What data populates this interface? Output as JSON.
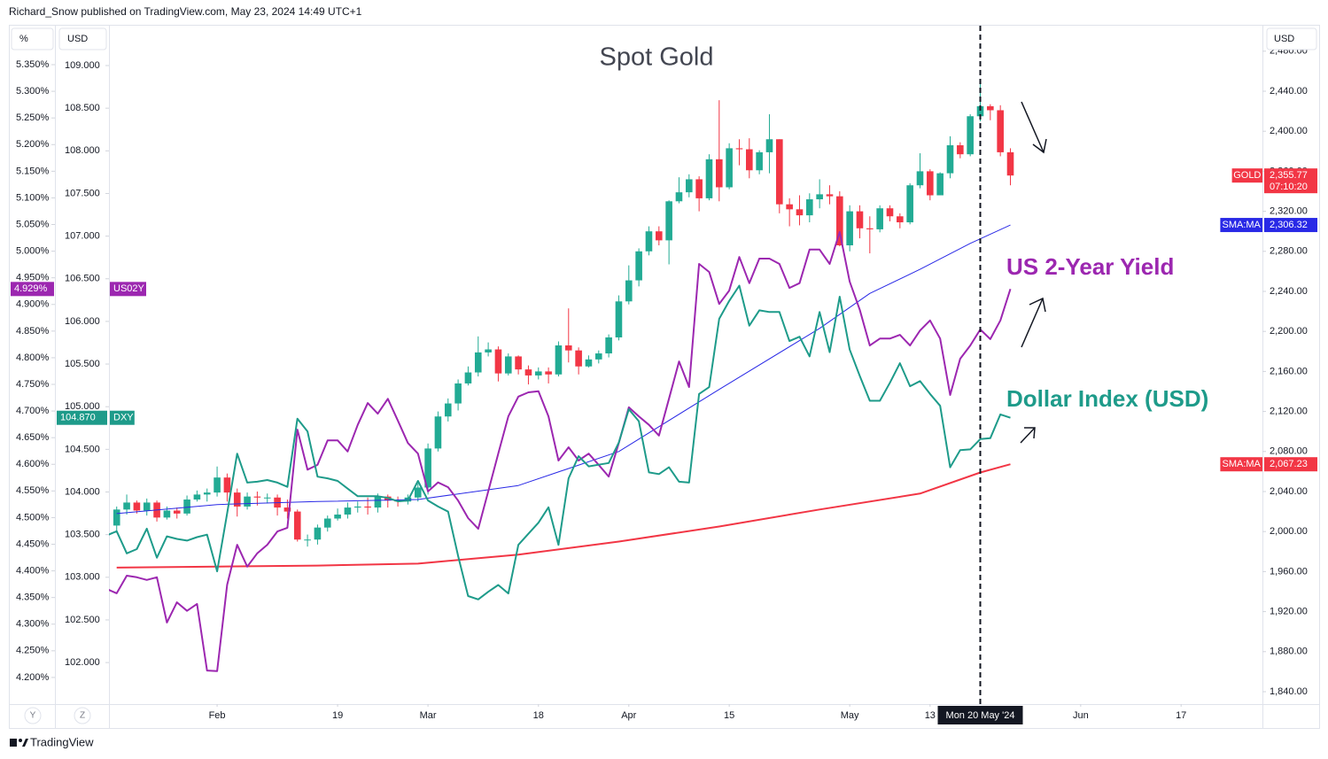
{
  "chart_data": {
    "type": "candlestick",
    "header": "Richard_Snow published on TradingView.com, May 23, 2024 14:49 UTC+1",
    "title": "Spot Gold",
    "annotations": [
      {
        "text": "US 2-Year Yield",
        "color": "#9c27b0"
      },
      {
        "text": "Dollar Index (USD)",
        "color": "#1e9b8a"
      }
    ],
    "xlim": [
      -0.77,
      114.1
    ],
    "xticks": [
      {
        "value": 10,
        "label": "Feb"
      },
      {
        "value": 22,
        "label": "19"
      },
      {
        "value": 31,
        "label": "Mar"
      },
      {
        "value": 42,
        "label": "18"
      },
      {
        "value": 51,
        "label": "Apr"
      },
      {
        "value": 61,
        "label": "15"
      },
      {
        "value": 73,
        "label": "May"
      },
      {
        "value": 81,
        "label": "13"
      },
      {
        "value": 86,
        "label": "Mon 20 May '24"
      },
      {
        "value": 96,
        "label": "Jun"
      },
      {
        "value": 106,
        "label": "17"
      }
    ],
    "crosshair_x": 86,
    "y_unit": "USD",
    "ylim": [
      1827.6,
      2504.6
    ],
    "yticks": [
      {
        "value": 1840,
        "label": "1,840.00"
      },
      {
        "value": 1880,
        "label": "1,880.00"
      },
      {
        "value": 1920,
        "label": "1,920.00"
      },
      {
        "value": 1960,
        "label": "1,960.00"
      },
      {
        "value": 2000,
        "label": "2,000.00"
      },
      {
        "value": 2040,
        "label": "2,040.00"
      },
      {
        "value": 2080,
        "label": "2,080.00"
      },
      {
        "value": 2120,
        "label": "2,120.00"
      },
      {
        "value": 2160,
        "label": "2,160.00"
      },
      {
        "value": 2200,
        "label": "2,200.00"
      },
      {
        "value": 2240,
        "label": "2,240.00"
      },
      {
        "value": 2280,
        "label": "2,280.00"
      },
      {
        "value": 2320,
        "label": "2,320.00"
      },
      {
        "value": 2360,
        "label": "2,360.00"
      },
      {
        "value": 2400,
        "label": "2,400.00"
      },
      {
        "value": 2440,
        "label": "2,440.00"
      },
      {
        "value": 2480,
        "label": "2,480.00"
      }
    ],
    "y2_unit": "USD",
    "y2lim": [
      101.513,
      109.457
    ],
    "y2ticks": [
      {
        "value": 102,
        "label": "102.000"
      },
      {
        "value": 102.5,
        "label": "102.500"
      },
      {
        "value": 103,
        "label": "103.000"
      },
      {
        "value": 103.5,
        "label": "103.500"
      },
      {
        "value": 104,
        "label": "104.000"
      },
      {
        "value": 104.5,
        "label": "104.500"
      },
      {
        "value": 105,
        "label": "105.000"
      },
      {
        "value": 105.5,
        "label": "105.500"
      },
      {
        "value": 106,
        "label": "106.000"
      },
      {
        "value": 106.5,
        "label": "106.500"
      },
      {
        "value": 107,
        "label": "107.000"
      },
      {
        "value": 107.5,
        "label": "107.500"
      },
      {
        "value": 108,
        "label": "108.000"
      },
      {
        "value": 108.5,
        "label": "108.500"
      },
      {
        "value": 109,
        "label": "109.000"
      }
    ],
    "y3_unit": "%",
    "y3lim": [
      4.15,
      5.4215
    ],
    "y3ticks": [
      {
        "value": 4.2,
        "label": "4.200%"
      },
      {
        "value": 4.25,
        "label": "4.250%"
      },
      {
        "value": 4.3,
        "label": "4.300%"
      },
      {
        "value": 4.35,
        "label": "4.350%"
      },
      {
        "value": 4.4,
        "label": "4.400%"
      },
      {
        "value": 4.45,
        "label": "4.450%"
      },
      {
        "value": 4.5,
        "label": "4.500%"
      },
      {
        "value": 4.55,
        "label": "4.550%"
      },
      {
        "value": 4.6,
        "label": "4.600%"
      },
      {
        "value": 4.65,
        "label": "4.650%"
      },
      {
        "value": 4.7,
        "label": "4.700%"
      },
      {
        "value": 4.75,
        "label": "4.750%"
      },
      {
        "value": 4.8,
        "label": "4.800%"
      },
      {
        "value": 4.85,
        "label": "4.850%"
      },
      {
        "value": 4.9,
        "label": "4.900%"
      },
      {
        "value": 4.95,
        "label": "4.950%"
      },
      {
        "value": 5,
        "label": "5.000%"
      },
      {
        "value": 5.05,
        "label": "5.050%"
      },
      {
        "value": 5.1,
        "label": "5.100%"
      },
      {
        "value": 5.15,
        "label": "5.150%"
      },
      {
        "value": 5.2,
        "label": "5.200%"
      },
      {
        "value": 5.25,
        "label": "5.250%"
      },
      {
        "value": 5.3,
        "label": "5.300%"
      },
      {
        "value": 5.35,
        "label": "5.350%"
      }
    ],
    "series": [
      {
        "name": "GOLD",
        "type": "candlestick",
        "axis": "y",
        "color": "#f23645",
        "up_color": "#22ab94",
        "down_color": "#f23645",
        "last_label": "2,355.77",
        "countdown": "07:10:20",
        "x": [
          0,
          1,
          2,
          3,
          4,
          5,
          6,
          7,
          8,
          9,
          10,
          11,
          12,
          13,
          14,
          15,
          16,
          17,
          18,
          19,
          20,
          21,
          22,
          23,
          24,
          25,
          26,
          27,
          28,
          29,
          30,
          31,
          32,
          33,
          34,
          35,
          36,
          37,
          38,
          39,
          40,
          41,
          42,
          43,
          44,
          45,
          46,
          47,
          48,
          49,
          50,
          51,
          52,
          53,
          54,
          55,
          56,
          57,
          58,
          59,
          60,
          61,
          62,
          63,
          64,
          65,
          66,
          67,
          68,
          69,
          70,
          71,
          72,
          73,
          74,
          75,
          76,
          77,
          78,
          79,
          80,
          81,
          82,
          83,
          84,
          85,
          86,
          87,
          88,
          89
        ],
        "open": [
          2006,
          2022,
          2029,
          2021,
          2029,
          2014,
          2021,
          2018,
          2032,
          2037,
          2039,
          2054,
          2039,
          2025,
          2035,
          2034,
          2034,
          2024,
          2020,
          1992,
          1992,
          2004,
          2013,
          2017,
          2024,
          2025,
          2024,
          2035,
          2031,
          2030,
          2034,
          2044,
          2083,
          2115,
          2128,
          2148,
          2159,
          2179,
          2182,
          2158,
          2175,
          2162,
          2156,
          2160,
          2157,
          2186,
          2181,
          2165,
          2172,
          2178,
          2194,
          2230,
          2251,
          2280,
          2300,
          2291,
          2330,
          2339,
          2352,
          2333,
          2372,
          2344,
          2383,
          2382,
          2361,
          2379,
          2392,
          2327,
          2322,
          2316,
          2332,
          2337,
          2335,
          2286,
          2320,
          2303,
          2302,
          2323,
          2315,
          2309,
          2346,
          2360,
          2336,
          2358,
          2386,
          2377,
          2415,
          2425,
          2421,
          2379
        ],
        "high": [
          2025,
          2037,
          2031,
          2033,
          2031,
          2025,
          2024,
          2036,
          2041,
          2043,
          2065,
          2058,
          2043,
          2039,
          2040,
          2038,
          2037,
          2032,
          2022,
          1997,
          2007,
          2016,
          2023,
          2029,
          2030,
          2034,
          2038,
          2037,
          2035,
          2037,
          2048,
          2088,
          2120,
          2133,
          2152,
          2165,
          2195,
          2189,
          2185,
          2178,
          2176,
          2166,
          2164,
          2164,
          2190,
          2223,
          2184,
          2176,
          2181,
          2197,
          2236,
          2266,
          2283,
          2305,
          2305,
          2331,
          2354,
          2357,
          2355,
          2377,
          2431,
          2388,
          2392,
          2393,
          2381,
          2417,
          2392,
          2333,
          2336,
          2338,
          2352,
          2346,
          2340,
          2326,
          2326,
          2315,
          2326,
          2326,
          2318,
          2348,
          2378,
          2362,
          2359,
          2395,
          2389,
          2417,
          2450,
          2427,
          2426,
          2383
        ],
        "low": [
          2001,
          2017,
          2018,
          2016,
          2010,
          2012,
          2013,
          2016,
          2030,
          2030,
          2035,
          2030,
          2015,
          2022,
          2026,
          2028,
          2016,
          2013,
          1990,
          1985,
          1987,
          2000,
          2011,
          2013,
          2019,
          2017,
          2019,
          2024,
          2025,
          2027,
          2030,
          2037,
          2080,
          2110,
          2121,
          2146,
          2155,
          2175,
          2150,
          2156,
          2157,
          2147,
          2152,
          2148,
          2155,
          2169,
          2157,
          2164,
          2168,
          2174,
          2191,
          2227,
          2245,
          2276,
          2286,
          2267,
          2328,
          2334,
          2320,
          2331,
          2330,
          2342,
          2366,
          2353,
          2357,
          2358,
          2318,
          2305,
          2306,
          2309,
          2323,
          2327,
          2285,
          2280,
          2293,
          2278,
          2299,
          2310,
          2303,
          2307,
          2343,
          2331,
          2336,
          2353,
          2373,
          2375,
          2410,
          2411,
          2375,
          2346
        ],
        "close": [
          2022,
          2029,
          2021,
          2029,
          2014,
          2021,
          2018,
          2032,
          2037,
          2039,
          2054,
          2039,
          2025,
          2035,
          2034,
          2034,
          2024,
          2020,
          1992,
          1992,
          2004,
          2013,
          2017,
          2024,
          2025,
          2024,
          2035,
          2031,
          2030,
          2034,
          2044,
          2083,
          2115,
          2128,
          2148,
          2159,
          2179,
          2182,
          2158,
          2175,
          2162,
          2156,
          2160,
          2157,
          2186,
          2181,
          2165,
          2172,
          2178,
          2194,
          2230,
          2251,
          2280,
          2300,
          2291,
          2330,
          2339,
          2352,
          2333,
          2372,
          2344,
          2383,
          2382,
          2361,
          2379,
          2392,
          2327,
          2322,
          2316,
          2332,
          2337,
          2335,
          2286,
          2320,
          2303,
          2302,
          2323,
          2315,
          2309,
          2346,
          2360,
          2336,
          2358,
          2386,
          2377,
          2415,
          2425,
          2421,
          2379,
          2355.77
        ]
      },
      {
        "name": "SMA:MA",
        "type": "line",
        "axis": "y",
        "color": "#2929e6",
        "width": 1,
        "last_label": "2,306.32",
        "x": [
          0,
          10,
          20,
          30,
          40,
          50,
          60,
          70,
          75,
          80,
          85,
          89
        ],
        "values": [
          2018,
          2027,
          2030,
          2032,
          2046,
          2080,
          2142,
          2203,
          2238,
          2262,
          2288,
          2306.32
        ]
      },
      {
        "name": "SMA:MA",
        "type": "line",
        "axis": "y",
        "color": "#f23645",
        "width": 2,
        "last_label": "2,067.23",
        "x": [
          0,
          10,
          20,
          30,
          40,
          50,
          60,
          70,
          80,
          86,
          89
        ],
        "values": [
          1964,
          1965,
          1966,
          1968,
          1977,
          1990,
          2005,
          2022,
          2038,
          2059,
          2067.23
        ]
      },
      {
        "name": "US02Y",
        "type": "line",
        "axis": "y3",
        "color": "#9c27b0",
        "width": 2,
        "last_label": "4.929%",
        "x": [
          -1,
          0,
          1,
          2,
          3,
          4,
          5,
          6,
          7,
          8,
          9,
          10,
          11,
          12,
          13,
          14,
          15,
          16,
          17,
          18,
          19,
          20,
          21,
          22,
          23,
          24,
          25,
          26,
          27,
          28,
          29,
          30,
          31,
          32,
          33,
          34,
          35,
          36,
          37,
          38,
          39,
          40,
          41,
          42,
          43,
          44,
          45,
          46,
          47,
          48,
          49,
          50,
          51,
          52,
          53,
          54,
          55,
          56,
          57,
          58,
          59,
          60,
          61,
          62,
          63,
          64,
          65,
          66,
          67,
          68,
          69,
          70,
          71,
          72,
          73,
          74,
          75,
          76,
          77,
          78,
          79,
          80,
          81,
          82,
          83,
          84,
          85,
          86,
          87,
          88,
          89
        ],
        "values": [
          4.366,
          4.358,
          4.391,
          4.388,
          4.383,
          4.388,
          4.303,
          4.341,
          4.325,
          4.338,
          4.213,
          4.212,
          4.374,
          4.449,
          4.408,
          4.433,
          4.449,
          4.474,
          4.481,
          4.665,
          4.59,
          4.599,
          4.645,
          4.645,
          4.624,
          4.674,
          4.715,
          4.695,
          4.723,
          4.682,
          4.64,
          4.62,
          4.549,
          4.566,
          4.557,
          4.532,
          4.499,
          4.479,
          4.549,
          4.62,
          4.69,
          4.727,
          4.735,
          4.737,
          4.69,
          4.607,
          4.632,
          4.607,
          4.62,
          4.599,
          4.577,
          4.64,
          4.707,
          4.69,
          4.674,
          4.654,
          4.723,
          4.793,
          4.745,
          4.976,
          4.961,
          4.901,
          4.926,
          4.989,
          4.94,
          4.986,
          4.986,
          4.976,
          4.931,
          4.94,
          5.003,
          5.003,
          4.976,
          5.036,
          4.943,
          4.89,
          4.823,
          4.836,
          4.836,
          4.843,
          4.823,
          4.851,
          4.87,
          4.836,
          4.73,
          4.798,
          4.823,
          4.853,
          4.835,
          4.87,
          4.929
        ]
      },
      {
        "name": "DXY",
        "type": "line",
        "axis": "y2",
        "color": "#1e9b8a",
        "width": 2,
        "last_label": "104.870",
        "x": [
          -1,
          0,
          1,
          2,
          3,
          4,
          5,
          6,
          7,
          8,
          9,
          10,
          11,
          12,
          13,
          14,
          15,
          16,
          17,
          18,
          19,
          20,
          21,
          22,
          23,
          24,
          25,
          26,
          27,
          28,
          29,
          30,
          31,
          32,
          33,
          34,
          35,
          36,
          37,
          38,
          39,
          40,
          41,
          42,
          43,
          44,
          45,
          46,
          47,
          48,
          49,
          50,
          51,
          52,
          53,
          54,
          55,
          56,
          57,
          58,
          59,
          60,
          61,
          62,
          63,
          64,
          65,
          66,
          67,
          68,
          69,
          70,
          71,
          72,
          73,
          74,
          75,
          76,
          77,
          78,
          79,
          80,
          81,
          82,
          83,
          84,
          85,
          86,
          87,
          88,
          89
        ],
        "values": [
          103.49,
          103.54,
          103.28,
          103.33,
          103.57,
          103.23,
          103.48,
          103.45,
          103.43,
          103.47,
          103.5,
          103.07,
          103.75,
          104.45,
          104.11,
          104.12,
          104.14,
          104.11,
          104.06,
          104.86,
          104.71,
          104.18,
          104.16,
          104.13,
          104.04,
          103.95,
          103.95,
          103.95,
          103.93,
          103.89,
          103.9,
          104.13,
          103.9,
          103.83,
          103.77,
          103.25,
          102.78,
          102.74,
          102.83,
          102.91,
          102.81,
          103.38,
          103.51,
          103.64,
          103.82,
          103.38,
          104.16,
          104.42,
          104.3,
          104.32,
          104.34,
          104.58,
          104.97,
          104.83,
          104.23,
          104.21,
          104.29,
          104.12,
          104.11,
          105.15,
          105.23,
          106.03,
          106.24,
          106.42,
          105.95,
          106.13,
          106.11,
          106.11,
          105.77,
          105.82,
          105.59,
          106.11,
          105.64,
          106.29,
          105.67,
          105.36,
          105.07,
          105.07,
          105.28,
          105.51,
          105.24,
          105.3,
          105.15,
          105.01,
          104.29,
          104.49,
          104.5,
          104.62,
          104.63,
          104.91,
          104.87
        ]
      }
    ],
    "scale_buttons": [
      "Y",
      "Z"
    ],
    "brand": "TradingView"
  }
}
